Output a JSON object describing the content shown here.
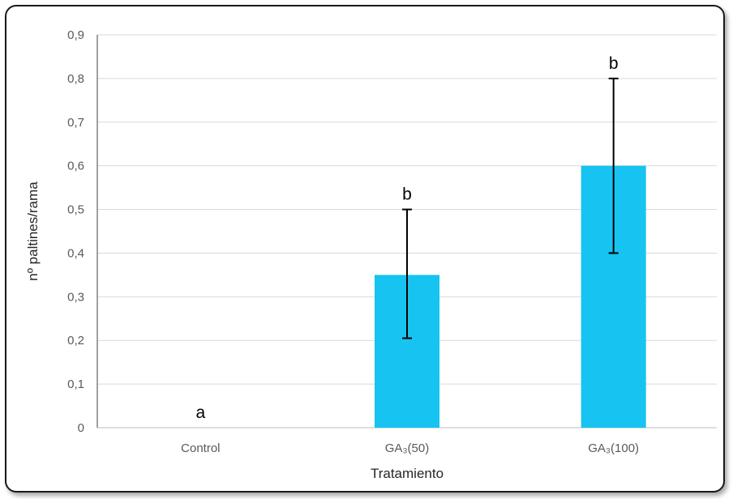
{
  "chart_data": {
    "type": "bar",
    "categories": [
      "Control",
      "GA₃(50)",
      "GA₃(100)"
    ],
    "values": [
      0,
      0.35,
      0.6
    ],
    "error_upper": [
      0,
      0.5,
      0.8
    ],
    "error_lower": [
      0,
      0.205,
      0.4
    ],
    "significance_labels": [
      "a",
      "b",
      "b"
    ],
    "xlabel": "Tratamiento",
    "ylabel": "nº paltines/rama",
    "ylim": [
      0,
      0.9
    ],
    "yticks": [
      "0",
      "0,1",
      "0,2",
      "0,3",
      "0,4",
      "0,5",
      "0,6",
      "0,7",
      "0,8",
      "0,9"
    ],
    "grid": true,
    "bar_color": "#16C3F1",
    "grid_color": "#d9d9d9"
  }
}
